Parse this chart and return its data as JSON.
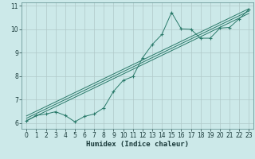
{
  "xlabel": "Humidex (Indice chaleur)",
  "bg_color": "#cce9e9",
  "grid_color": "#b0c8c8",
  "line_color": "#2a7a6a",
  "xlim": [
    -0.5,
    23.5
  ],
  "ylim": [
    5.75,
    11.15
  ],
  "xticks": [
    0,
    1,
    2,
    3,
    4,
    5,
    6,
    7,
    8,
    9,
    10,
    11,
    12,
    13,
    14,
    15,
    16,
    17,
    18,
    19,
    20,
    21,
    22,
    23
  ],
  "yticks": [
    6,
    7,
    8,
    9,
    10,
    11
  ],
  "jagged_x": [
    0,
    1,
    2,
    3,
    4,
    5,
    6,
    7,
    8,
    9,
    10,
    11,
    12,
    13,
    14,
    15,
    16,
    17,
    18,
    19,
    20,
    21,
    22,
    23
  ],
  "jagged_y": [
    6.08,
    6.32,
    6.38,
    6.48,
    6.32,
    6.05,
    6.28,
    6.38,
    6.65,
    7.35,
    7.82,
    7.98,
    8.78,
    9.35,
    9.78,
    10.72,
    10.02,
    10.0,
    9.62,
    9.62,
    10.05,
    10.08,
    10.45,
    10.85
  ],
  "straight_lines": [
    {
      "x": [
        0,
        23
      ],
      "y": [
        6.3,
        10.88
      ]
    },
    {
      "x": [
        0,
        23
      ],
      "y": [
        6.2,
        10.78
      ]
    },
    {
      "x": [
        0,
        23
      ],
      "y": [
        6.1,
        10.68
      ]
    }
  ]
}
